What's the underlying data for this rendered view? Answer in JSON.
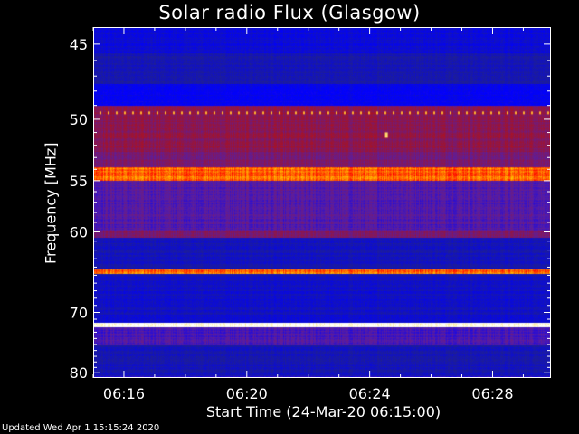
{
  "chart_data": {
    "type": "heatmap",
    "title": "Solar radio Flux (Glasgow)",
    "xlabel": "Start Time (24-Mar-20 06:15:00)",
    "ylabel": "Frequency [MHz]",
    "x_tick_labels": [
      "06:16",
      "06:20",
      "06:24",
      "06:28"
    ],
    "x_tick_minutes": [
      1,
      5,
      9,
      13
    ],
    "xlim_minutes": [
      0,
      14.9
    ],
    "y_tick_labels": [
      "45",
      "50",
      "55",
      "60",
      "70",
      "80"
    ],
    "y_tick_values": [
      45,
      50,
      55,
      60,
      70,
      80
    ],
    "ylim_mhz": [
      44,
      81
    ],
    "y_axis": "reciprocal",
    "colormap": [
      "#20208f",
      "#0000ff",
      "#5a1ea0",
      "#a0142d",
      "#ff0000",
      "#ffd700",
      "#ffffff"
    ],
    "bands_mhz": [
      {
        "from": 44.0,
        "to": 45.5,
        "level": 0.1
      },
      {
        "from": 45.5,
        "to": 47.5,
        "level": 0.05
      },
      {
        "from": 47.5,
        "to": 49.0,
        "level": 0.15
      },
      {
        "from": 49.0,
        "to": 52.5,
        "level": 0.45
      },
      {
        "from": 52.5,
        "to": 53.8,
        "level": 0.4
      },
      {
        "from": 53.8,
        "to": 55.0,
        "level": 0.75
      },
      {
        "from": 55.0,
        "to": 59.8,
        "level": 0.32
      },
      {
        "from": 59.8,
        "to": 60.6,
        "level": 0.4
      },
      {
        "from": 60.6,
        "to": 64.2,
        "level": 0.06
      },
      {
        "from": 64.2,
        "to": 64.8,
        "level": 0.75
      },
      {
        "from": 64.8,
        "to": 71.5,
        "level": 0.08
      },
      {
        "from": 71.5,
        "to": 72.2,
        "level": 1.0
      },
      {
        "from": 72.2,
        "to": 75.0,
        "level": 0.3
      },
      {
        "from": 75.0,
        "to": 80.5,
        "level": 0.06
      },
      {
        "from": 80.5,
        "to": 81.0,
        "level": 0.25
      }
    ],
    "burst_mhz": 51.2,
    "burst_minute": 9.5
  },
  "footer_text": "Updated Wed Apr  1 15:15:24 2020"
}
